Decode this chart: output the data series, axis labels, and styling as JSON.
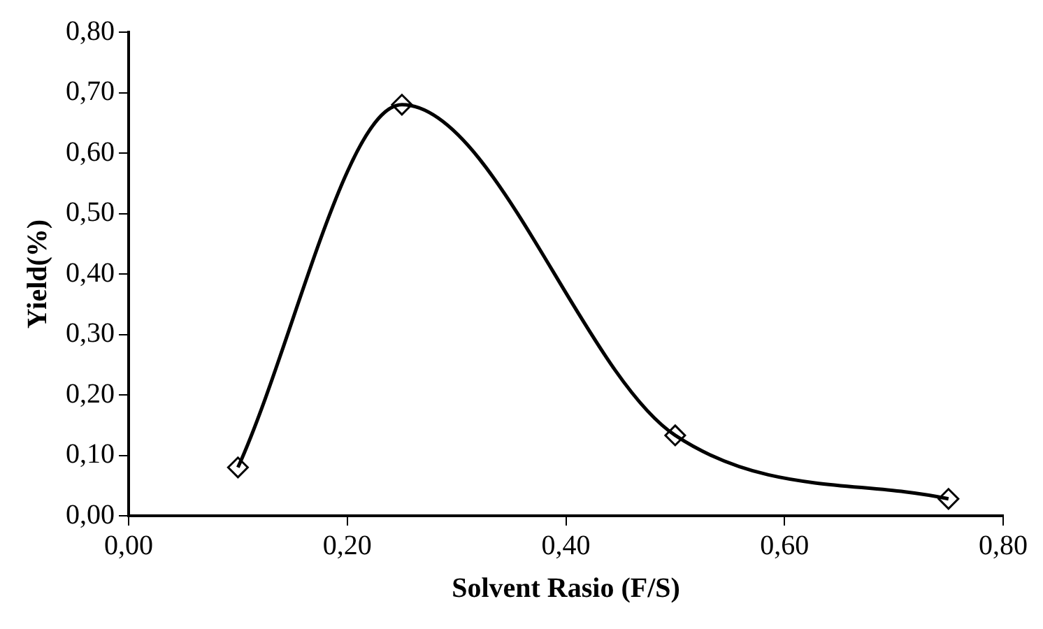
{
  "chart_data": {
    "type": "line",
    "xlabel": "Solvent Rasio (F/S)",
    "ylabel": "Yield(%)",
    "x": [
      0.1,
      0.25,
      0.5,
      0.75
    ],
    "series": [
      {
        "color": "#000000",
        "values": [
          0.08,
          0.68,
          0.133,
          0.028
        ]
      }
    ],
    "xlim": [
      0,
      0.8
    ],
    "ylim": [
      0,
      0.8
    ],
    "xticks": [
      {
        "value": 0,
        "label": "0,00"
      },
      {
        "value": 0.2,
        "label": "0,20"
      },
      {
        "value": 0.4,
        "label": "0,40"
      },
      {
        "value": 0.6,
        "label": "0,60"
      },
      {
        "value": 0.8,
        "label": "0,80"
      }
    ],
    "yticks": [
      {
        "value": 0,
        "label": "0,00"
      },
      {
        "value": 0.1,
        "label": "0,10"
      },
      {
        "value": 0.2,
        "label": "0,20"
      },
      {
        "value": 0.3,
        "label": "0,30"
      },
      {
        "value": 0.4,
        "label": "0,40"
      },
      {
        "value": 0.5,
        "label": "0,50"
      },
      {
        "value": 0.6,
        "label": "0,60"
      },
      {
        "value": 0.7,
        "label": "0,70"
      },
      {
        "value": 0.8,
        "label": "0,80"
      }
    ],
    "marker": "diamond",
    "line_style": "solid",
    "grid": false,
    "legend": false
  }
}
